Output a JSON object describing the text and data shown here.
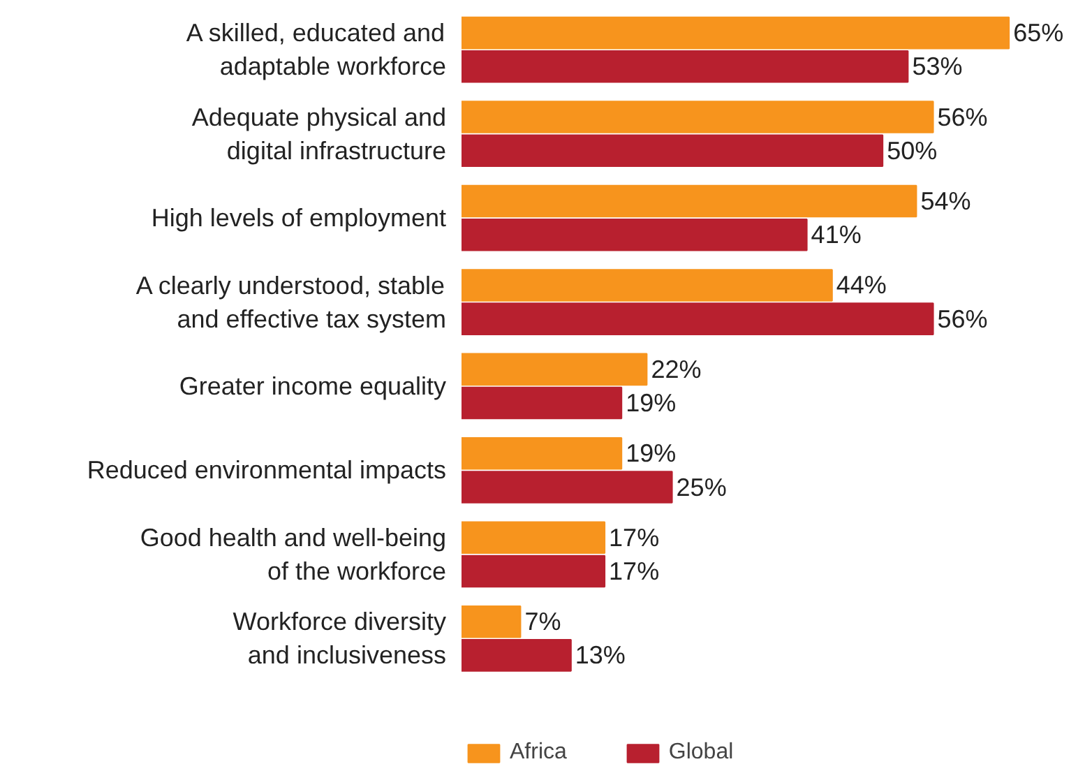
{
  "chart_data": {
    "type": "bar",
    "orientation": "horizontal",
    "categories": [
      "A skilled, educated and\nadaptable workforce",
      "Adequate physical and\ndigital infrastructure",
      "High levels of employment",
      "A clearly understood, stable\nand effective tax system",
      "Greater income equality",
      "Reduced environmental impacts",
      "Good health and well-being\nof the workforce",
      "Workforce diversity\nand inclusiveness"
    ],
    "series": [
      {
        "name": "Africa",
        "color": "#f7941d",
        "values": [
          65,
          56,
          54,
          44,
          22,
          19,
          17,
          7
        ],
        "value_labels": [
          "65%",
          "56%",
          "54%",
          "44%",
          "22%",
          "19%",
          "17%",
          "7%"
        ]
      },
      {
        "name": "Global",
        "color": "#b8202f",
        "values": [
          53,
          50,
          41,
          56,
          19,
          25,
          17,
          13
        ],
        "value_labels": [
          "53%",
          "50%",
          "41%",
          "56%",
          "19%",
          "25%",
          "17%",
          "13%"
        ]
      }
    ],
    "legend": "bottom"
  }
}
